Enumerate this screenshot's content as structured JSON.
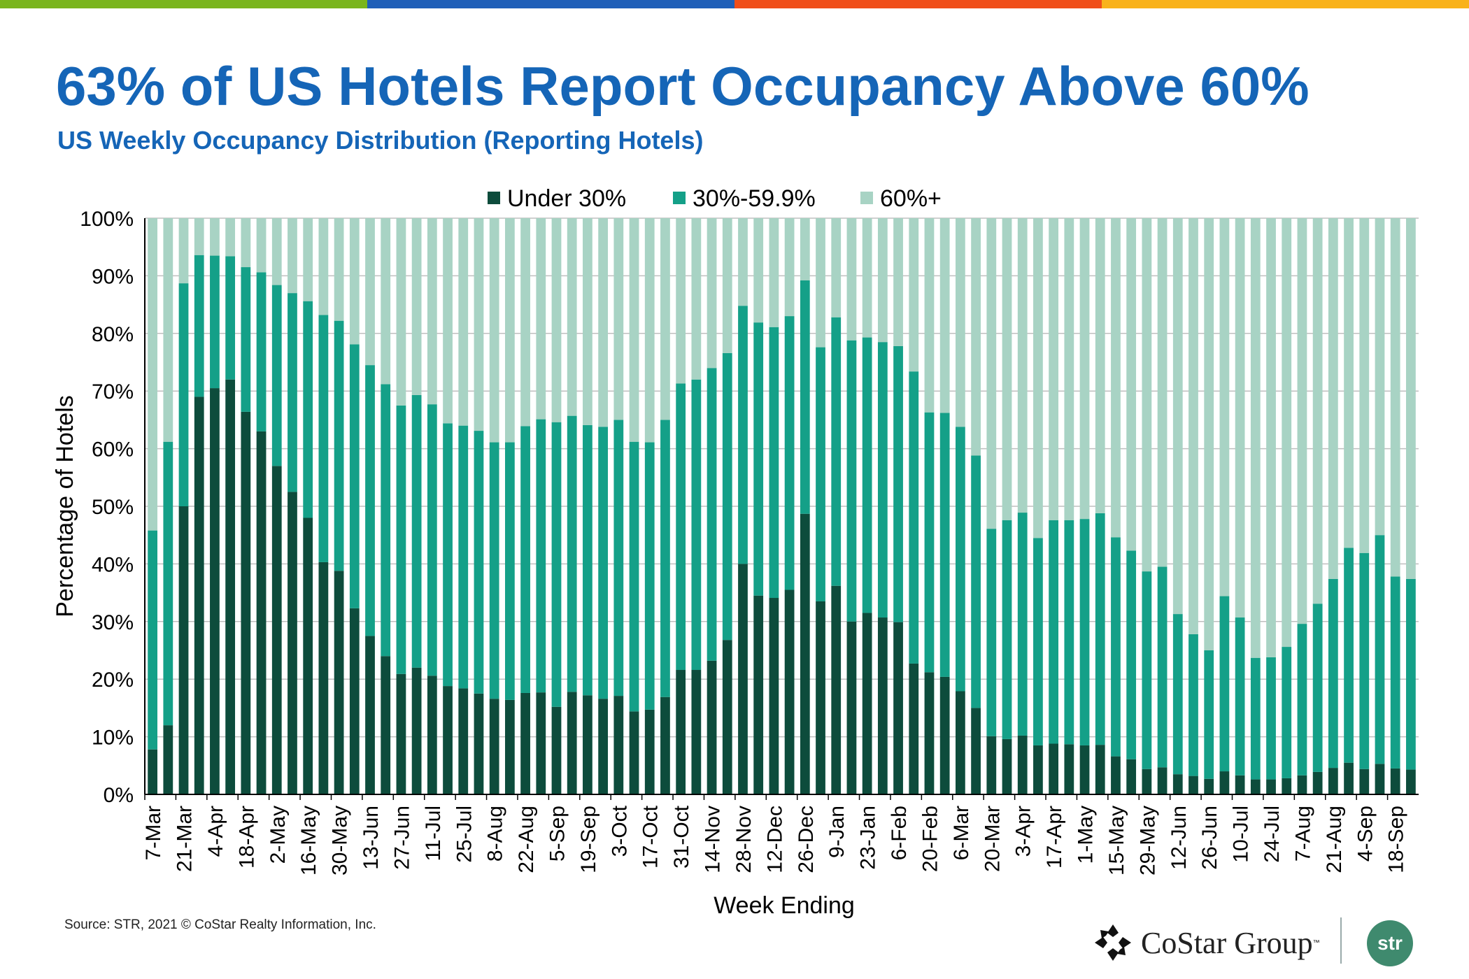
{
  "header": {
    "title": "63% of US Hotels Report Occupancy Above 60%",
    "subtitle": "US Weekly Occupancy Distribution (Reporting Hotels)",
    "bar_colors": [
      "#7ab51d",
      "#1f5fb8",
      "#f04e1a",
      "#f9b21b"
    ]
  },
  "footer": {
    "source": "Source: STR, 2021 © CoStar Realty Information, Inc.",
    "costar_logo": "CoStar Group",
    "str_logo": "str"
  },
  "chart_data": {
    "type": "bar",
    "stacked": true,
    "xlabel": "Week Ending",
    "ylabel": "Percentage of Hotels",
    "ylim": [
      0,
      100
    ],
    "yticks": [
      "0%",
      "10%",
      "20%",
      "30%",
      "40%",
      "50%",
      "60%",
      "70%",
      "80%",
      "90%",
      "100%"
    ],
    "grid": true,
    "legend": "top-center",
    "tick_labels": [
      "7-Mar",
      "21-Mar",
      "4-Apr",
      "18-Apr",
      "2-May",
      "16-May",
      "30-May",
      "13-Jun",
      "27-Jun",
      "11-Jul",
      "25-Jul",
      "8-Aug",
      "22-Aug",
      "5-Sep",
      "19-Sep",
      "3-Oct",
      "17-Oct",
      "31-Oct",
      "14-Nov",
      "28-Nov",
      "12-Dec",
      "26-Dec",
      "9-Jan",
      "23-Jan",
      "6-Feb",
      "20-Feb",
      "6-Mar",
      "20-Mar",
      "3-Apr",
      "17-Apr",
      "1-May",
      "15-May",
      "29-May",
      "12-Jun",
      "26-Jun",
      "10-Jul",
      "24-Jul",
      "7-Aug",
      "21-Aug",
      "4-Sep",
      "18-Sep"
    ],
    "categories": [
      "7-Mar",
      "14-Mar",
      "21-Mar",
      "28-Mar",
      "4-Apr",
      "11-Apr",
      "18-Apr",
      "25-Apr",
      "2-May",
      "9-May",
      "16-May",
      "23-May",
      "30-May",
      "6-Jun",
      "13-Jun",
      "20-Jun",
      "27-Jun",
      "4-Jul",
      "11-Jul",
      "18-Jul",
      "25-Jul",
      "1-Aug",
      "8-Aug",
      "15-Aug",
      "22-Aug",
      "29-Aug",
      "5-Sep",
      "12-Sep",
      "19-Sep",
      "26-Sep",
      "3-Oct",
      "10-Oct",
      "17-Oct",
      "24-Oct",
      "31-Oct",
      "7-Nov",
      "14-Nov",
      "21-Nov",
      "28-Nov",
      "5-Dec",
      "12-Dec",
      "19-Dec",
      "26-Dec",
      "2-Jan",
      "9-Jan",
      "16-Jan",
      "23-Jan",
      "30-Jan",
      "6-Feb",
      "13-Feb",
      "20-Feb",
      "27-Feb",
      "6-Mar",
      "13-Mar",
      "20-Mar",
      "27-Mar",
      "3-Apr",
      "10-Apr",
      "17-Apr",
      "24-Apr",
      "1-May",
      "8-May",
      "15-May",
      "22-May",
      "29-May",
      "5-Jun",
      "12-Jun",
      "19-Jun",
      "26-Jun",
      "3-Jul",
      "10-Jul",
      "17-Jul",
      "24-Jul",
      "31-Jul",
      "7-Aug",
      "14-Aug",
      "21-Aug",
      "28-Aug",
      "4-Sep",
      "11-Sep",
      "18-Sep",
      "25-Sep"
    ],
    "series": [
      {
        "name": "Under 30%",
        "color": "#0d4c3c",
        "values": [
          7.8,
          12,
          50,
          69,
          70.5,
          72,
          66.4,
          63,
          57,
          52.5,
          48,
          40.3,
          38.8,
          32.3,
          27.5,
          24,
          20.9,
          22,
          20.6,
          18.8,
          18.4,
          17.5,
          16.6,
          16.4,
          17.6,
          17.7,
          15.2,
          17.8,
          17.2,
          16.6,
          17.1,
          14.4,
          14.7,
          16.9,
          21.6,
          21.6,
          23.2,
          26.8,
          40,
          34.5,
          34.1,
          35.5,
          48.7,
          33.5,
          36.2,
          30,
          31.5,
          30.7,
          29.9,
          22.7,
          21.2,
          20.4,
          17.9,
          15,
          10.1,
          9.6,
          10.2,
          8.5,
          8.8,
          8.7,
          8.5,
          8.6,
          6.6,
          6.1,
          4.4,
          4.7,
          3.5,
          3.2,
          2.7,
          4.0,
          3.3,
          2.6,
          2.6,
          2.8,
          3.3,
          3.9,
          4.6,
          5.5,
          4.4,
          5.3,
          4.5,
          4.3
        ]
      },
      {
        "name": "30%-59.9%",
        "color": "#14a088",
        "values": [
          38.0,
          49.2,
          38.7,
          24.6,
          23.0,
          21.4,
          25.1,
          27.6,
          31.4,
          34.5,
          37.6,
          42.9,
          43.4,
          45.8,
          47.0,
          47.2,
          46.6,
          47.3,
          47.1,
          45.6,
          45.6,
          45.6,
          44.5,
          44.7,
          46.3,
          47.4,
          49.4,
          47.9,
          46.9,
          47.2,
          47.9,
          46.8,
          46.4,
          48.1,
          49.7,
          50.4,
          50.8,
          49.8,
          44.8,
          47.4,
          47.0,
          47.5,
          40.5,
          44.1,
          46.6,
          48.8,
          47.8,
          47.8,
          47.9,
          50.7,
          45.1,
          45.8,
          45.9,
          43.8,
          36.0,
          38.0,
          38.7,
          36.0,
          38.8,
          38.9,
          39.3,
          40.2,
          38.0,
          36.2,
          34.3,
          34.8,
          27.8,
          24.6,
          22.3,
          30.4,
          27.4,
          21.1,
          21.2,
          22.8,
          26.3,
          29.2,
          32.8,
          37.3,
          37.5,
          39.7,
          33.3,
          33.1
        ]
      },
      {
        "name": "60%+",
        "color": "#a8d3c4",
        "values": [
          54.2,
          38.8,
          11.3,
          6.4,
          6.5,
          6.6,
          8.5,
          9.4,
          11.6,
          13.0,
          14.4,
          16.8,
          17.8,
          21.9,
          25.5,
          28.8,
          32.5,
          30.7,
          32.3,
          35.6,
          36.0,
          36.9,
          38.9,
          38.9,
          36.1,
          34.9,
          35.4,
          34.3,
          35.9,
          36.2,
          35.0,
          38.8,
          38.9,
          35.0,
          28.7,
          28.0,
          26.0,
          23.4,
          15.2,
          18.1,
          18.9,
          17.0,
          10.8,
          22.4,
          17.2,
          21.2,
          20.7,
          21.5,
          22.2,
          26.6,
          33.7,
          33.8,
          36.2,
          41.2,
          53.9,
          52.4,
          51.1,
          55.5,
          52.4,
          52.4,
          52.2,
          51.2,
          55.4,
          57.7,
          61.3,
          60.5,
          68.7,
          72.2,
          75.0,
          65.6,
          69.3,
          76.3,
          76.2,
          74.4,
          70.4,
          66.9,
          62.6,
          57.2,
          58.1,
          55.0,
          62.2,
          62.6
        ]
      }
    ]
  }
}
